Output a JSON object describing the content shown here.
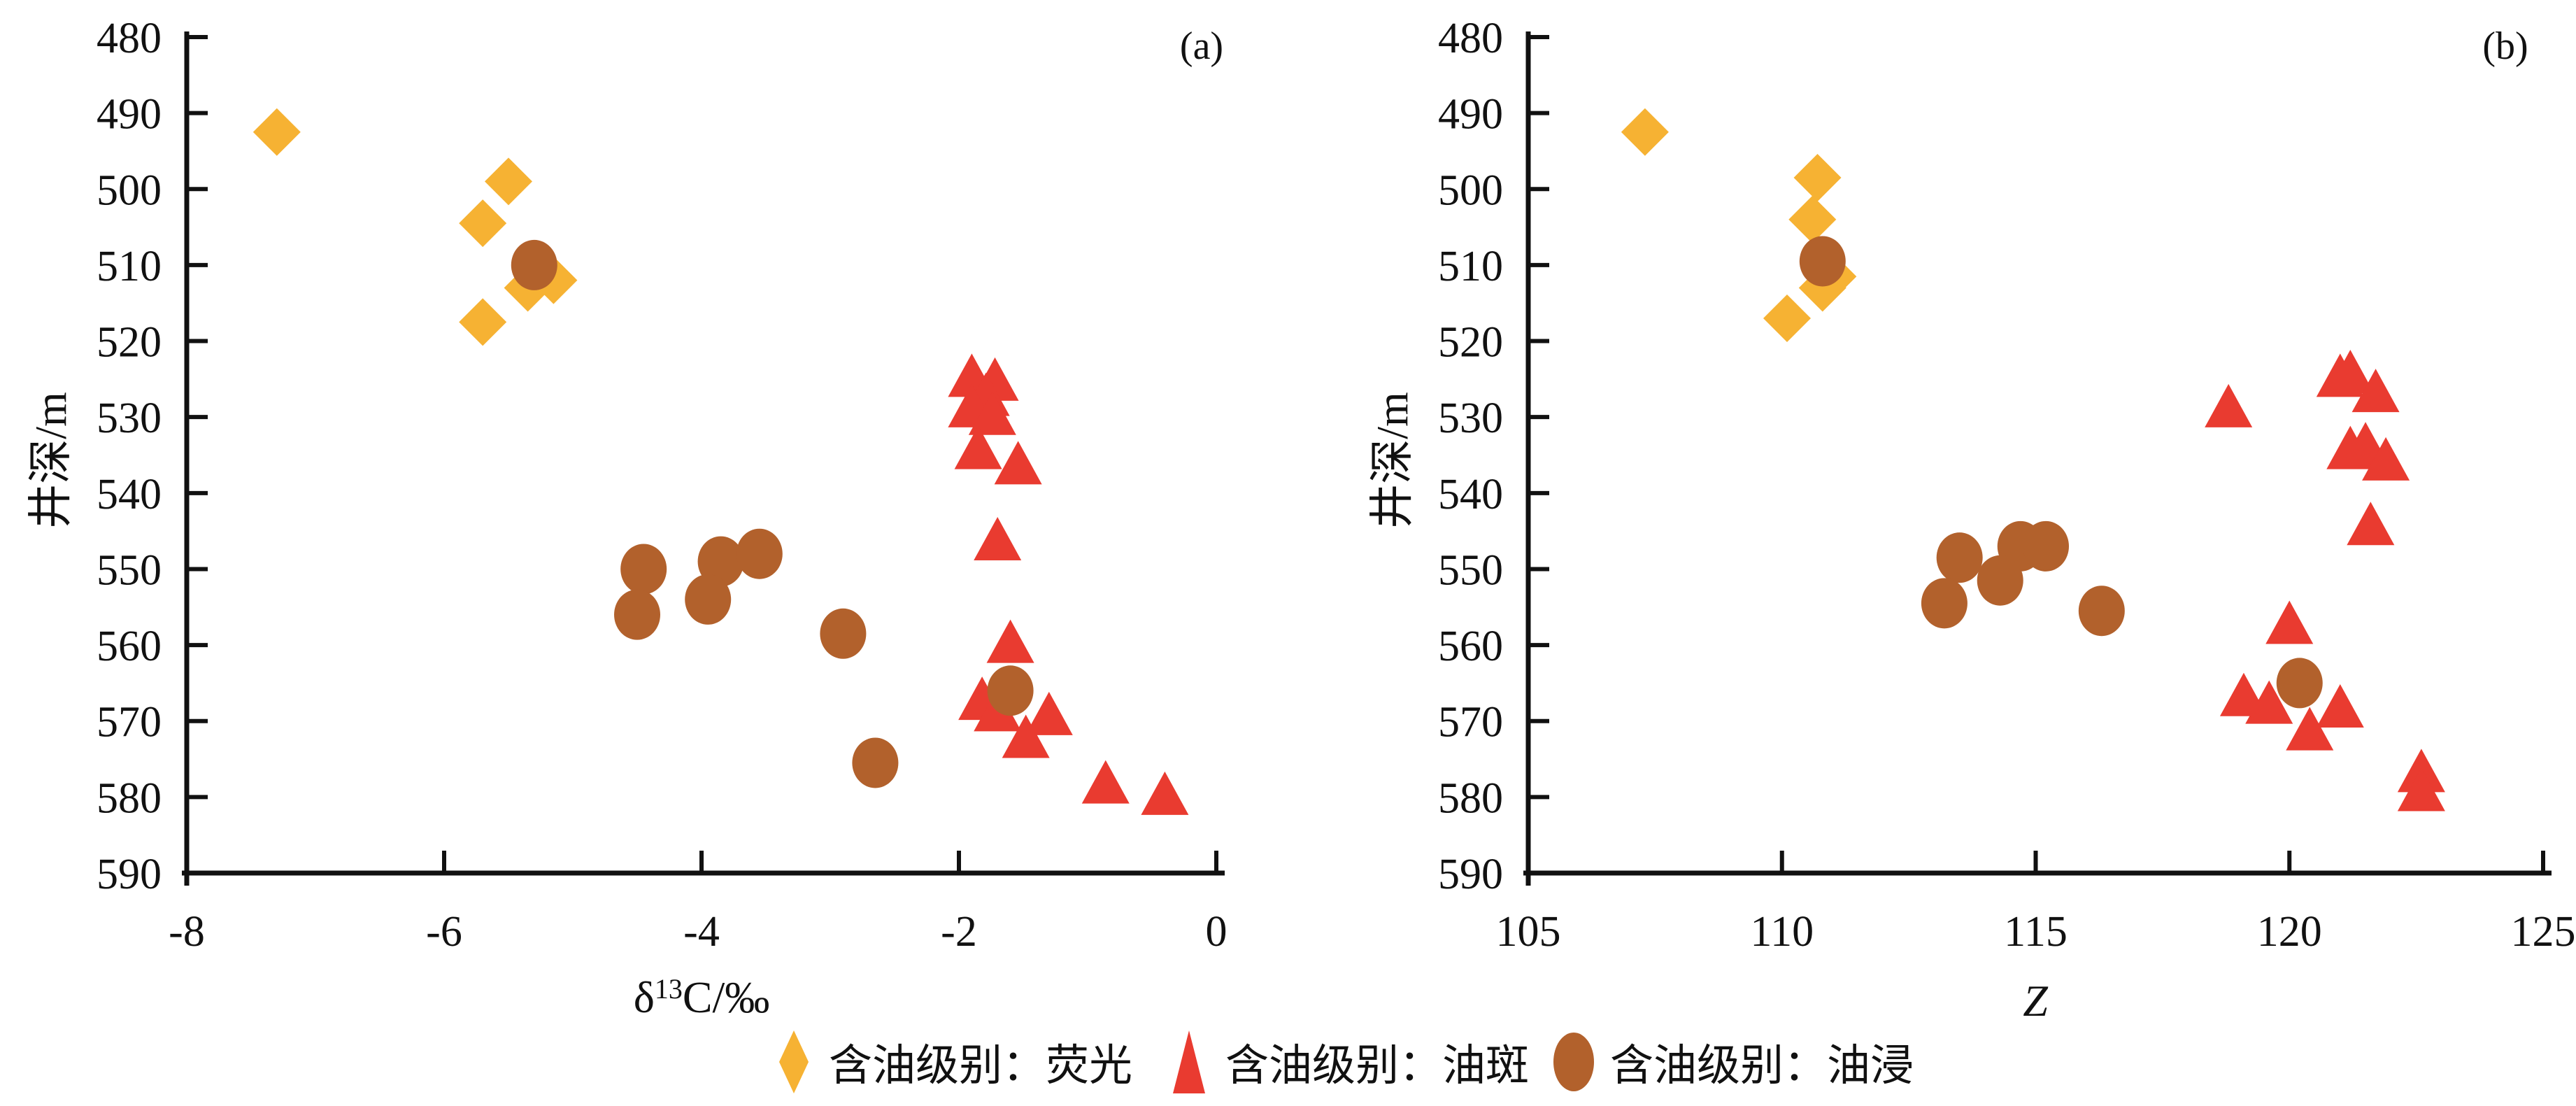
{
  "figure": {
    "background": "#ffffff",
    "colors": {
      "fluorescence": "#F6B233",
      "oil_spot": "#E93B30",
      "oil_soaked": "#B2612C",
      "axis": "#111111"
    },
    "legend": {
      "items": [
        {
          "marker": "diamond",
          "color": "#F6B233",
          "label": "含油级别：荧光"
        },
        {
          "marker": "triangle",
          "color": "#E93B30",
          "label": "含油级别：油斑"
        },
        {
          "marker": "circle",
          "color": "#B2612C",
          "label": "含油级别：油浸"
        }
      ],
      "position": "bottom-center"
    }
  },
  "chart_data": [
    {
      "type": "scatter",
      "panel_label": "(a)",
      "xlabel_parts": [
        {
          "text": "δ"
        },
        {
          "text": "13",
          "sup": true
        },
        {
          "text": "C/‰"
        }
      ],
      "ylabel": "井深/m",
      "xlim": [
        -8,
        0
      ],
      "ylim": [
        480,
        590
      ],
      "y_inverted": true,
      "grid": false,
      "x_ticks": [
        "-8",
        "-6",
        "-4",
        "-2",
        "0"
      ],
      "y_ticks": [
        "480",
        "490",
        "500",
        "510",
        "520",
        "530",
        "540",
        "550",
        "560",
        "570",
        "580",
        "590"
      ],
      "series": [
        {
          "name": "含油级别：荧光",
          "marker": "diamond",
          "color": "#F6B233",
          "points": [
            [
              -7.3,
              492.5
            ],
            [
              -5.5,
              499
            ],
            [
              -5.7,
              504.5
            ],
            [
              -5.15,
              512
            ],
            [
              -5.35,
              513
            ],
            [
              -5.7,
              517.5
            ]
          ]
        },
        {
          "name": "含油级别：油斑",
          "marker": "triangle",
          "color": "#E93B30",
          "points": [
            [
              -1.9,
              524.5
            ],
            [
              -1.72,
              525
            ],
            [
              -1.79,
              527
            ],
            [
              -1.9,
              528.5
            ],
            [
              -1.74,
              529.5
            ],
            [
              -1.85,
              534
            ],
            [
              -1.54,
              536
            ],
            [
              -1.7,
              546
            ],
            [
              -1.6,
              559.5
            ],
            [
              -1.82,
              567
            ],
            [
              -1.7,
              568.5
            ],
            [
              -1.3,
              569
            ],
            [
              -1.48,
              572
            ],
            [
              -0.86,
              578
            ],
            [
              -0.4,
              579.5
            ]
          ]
        },
        {
          "name": "含油级别：油浸",
          "marker": "circle",
          "color": "#B2612C",
          "points": [
            [
              -5.3,
              510
            ],
            [
              -4.45,
              550
            ],
            [
              -4.5,
              556
            ],
            [
              -3.85,
              549
            ],
            [
              -3.55,
              548
            ],
            [
              -3.95,
              554
            ],
            [
              -2.9,
              558.5
            ],
            [
              -2.65,
              575.5
            ],
            [
              -1.6,
              566
            ]
          ]
        }
      ]
    },
    {
      "type": "scatter",
      "panel_label": "(b)",
      "xlabel_parts": [
        {
          "text": "Z",
          "italic": true
        }
      ],
      "ylabel": "井深/m",
      "xlim": [
        105,
        125
      ],
      "ylim": [
        480,
        590
      ],
      "y_inverted": true,
      "grid": false,
      "x_ticks": [
        "105",
        "110",
        "115",
        "120",
        "125"
      ],
      "y_ticks": [
        "480",
        "490",
        "500",
        "510",
        "520",
        "530",
        "540",
        "550",
        "560",
        "570",
        "580",
        "590"
      ],
      "series": [
        {
          "name": "含油级别：荧光",
          "marker": "diamond",
          "color": "#F6B233",
          "points": [
            [
              107.3,
              492.5
            ],
            [
              110.7,
              498.5
            ],
            [
              110.6,
              504
            ],
            [
              111.0,
              511.5
            ],
            [
              110.8,
              513
            ],
            [
              110.1,
              517
            ]
          ]
        },
        {
          "name": "含油级别：油斑",
          "marker": "triangle",
          "color": "#E93B30",
          "points": [
            [
              121.0,
              524.5
            ],
            [
              121.2,
              524
            ],
            [
              121.7,
              526.5
            ],
            [
              118.8,
              528.5
            ],
            [
              121.2,
              534
            ],
            [
              121.5,
              533.5
            ],
            [
              121.9,
              535.5
            ],
            [
              121.6,
              544
            ],
            [
              120.0,
              557
            ],
            [
              119.1,
              566.5
            ],
            [
              119.6,
              567.5
            ],
            [
              121.0,
              568
            ],
            [
              120.4,
              571
            ],
            [
              122.6,
              576.5
            ],
            [
              122.6,
              579
            ]
          ]
        },
        {
          "name": "含油级别：油浸",
          "marker": "circle",
          "color": "#B2612C",
          "points": [
            [
              110.8,
              509.5
            ],
            [
              113.5,
              548.5
            ],
            [
              114.7,
              547
            ],
            [
              115.2,
              547
            ],
            [
              114.3,
              551.5
            ],
            [
              113.2,
              554.5
            ],
            [
              116.3,
              555.5
            ],
            [
              120.2,
              565
            ]
          ]
        }
      ]
    }
  ]
}
